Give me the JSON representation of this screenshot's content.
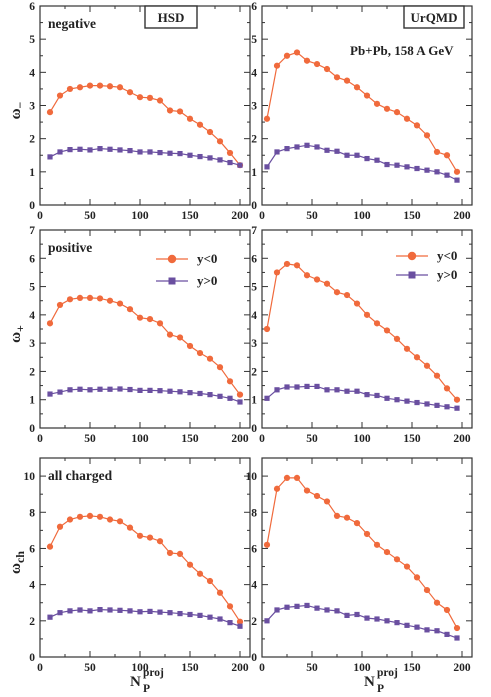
{
  "figure": {
    "xlabel": "N",
    "xlabel_sub": "P",
    "xlabel_sup": "proj",
    "models": [
      "HSD",
      "UrQMD"
    ],
    "system_label": "Pb+Pb,  158 A GeV",
    "colors": {
      "y_lt_0": "#f06a3c",
      "y_gt_0": "#6a4fa0",
      "axis": "#333333"
    }
  },
  "legend": {
    "y_lt_0": "y<0",
    "y_gt_0": "y>0"
  },
  "chart_data": [
    {
      "id": "hsd-negative",
      "type": "line",
      "model": "HSD",
      "row_label": "negative",
      "ylabel_main": "ω",
      "ylabel_sub": "−",
      "xlim": [
        0,
        210
      ],
      "ylim": [
        0,
        6
      ],
      "xticks": [
        0,
        50,
        100,
        150,
        200
      ],
      "yticks": [
        0,
        1,
        2,
        3,
        4,
        5,
        6
      ],
      "series": [
        {
          "name": "y<0",
          "marker": "circle",
          "x": [
            10,
            20,
            30,
            40,
            50,
            60,
            70,
            80,
            90,
            100,
            110,
            120,
            130,
            140,
            150,
            160,
            170,
            180,
            190,
            200
          ],
          "y": [
            2.8,
            3.3,
            3.5,
            3.55,
            3.6,
            3.6,
            3.58,
            3.55,
            3.4,
            3.25,
            3.23,
            3.15,
            2.85,
            2.82,
            2.6,
            2.42,
            2.2,
            1.92,
            1.57,
            1.2
          ]
        },
        {
          "name": "y>0",
          "marker": "square",
          "x": [
            10,
            20,
            30,
            40,
            50,
            60,
            70,
            80,
            90,
            100,
            110,
            120,
            130,
            140,
            150,
            160,
            170,
            180,
            190,
            200
          ],
          "y": [
            1.45,
            1.6,
            1.67,
            1.68,
            1.66,
            1.7,
            1.68,
            1.66,
            1.64,
            1.6,
            1.6,
            1.58,
            1.56,
            1.55,
            1.5,
            1.46,
            1.42,
            1.36,
            1.28,
            1.2
          ]
        }
      ]
    },
    {
      "id": "urqmd-negative",
      "type": "line",
      "model": "UrQMD",
      "row_label": "",
      "ylabel_main": "",
      "ylabel_sub": "",
      "xlim": [
        0,
        210
      ],
      "ylim": [
        0,
        6
      ],
      "xticks": [
        0,
        50,
        100,
        150,
        200
      ],
      "yticks": [
        0,
        1,
        2,
        3,
        4,
        5,
        6
      ],
      "series": [
        {
          "name": "y<0",
          "marker": "circle",
          "x": [
            5,
            15,
            25,
            35,
            45,
            55,
            65,
            75,
            85,
            95,
            105,
            115,
            125,
            135,
            145,
            155,
            165,
            175,
            185,
            195
          ],
          "y": [
            2.6,
            4.2,
            4.5,
            4.6,
            4.35,
            4.25,
            4.1,
            3.85,
            3.75,
            3.55,
            3.3,
            3.05,
            2.9,
            2.8,
            2.6,
            2.4,
            2.1,
            1.6,
            1.5,
            1.0
          ]
        },
        {
          "name": "y>0",
          "marker": "square",
          "x": [
            5,
            15,
            25,
            35,
            45,
            55,
            65,
            75,
            85,
            95,
            105,
            115,
            125,
            135,
            145,
            155,
            165,
            175,
            185,
            195
          ],
          "y": [
            1.15,
            1.6,
            1.7,
            1.75,
            1.8,
            1.75,
            1.65,
            1.62,
            1.5,
            1.5,
            1.4,
            1.35,
            1.22,
            1.2,
            1.15,
            1.1,
            1.05,
            1.0,
            0.9,
            0.75
          ]
        }
      ]
    },
    {
      "id": "hsd-positive",
      "type": "line",
      "model": "HSD",
      "row_label": "positive",
      "ylabel_main": "ω",
      "ylabel_sub": "+",
      "xlim": [
        0,
        210
      ],
      "ylim": [
        0,
        7
      ],
      "xticks": [
        0,
        50,
        100,
        150,
        200
      ],
      "yticks": [
        0,
        1,
        2,
        3,
        4,
        5,
        6,
        7
      ],
      "series": [
        {
          "name": "y<0",
          "marker": "circle",
          "x": [
            10,
            20,
            30,
            40,
            50,
            60,
            70,
            80,
            90,
            100,
            110,
            120,
            130,
            140,
            150,
            160,
            170,
            180,
            190,
            200
          ],
          "y": [
            3.7,
            4.35,
            4.55,
            4.6,
            4.6,
            4.58,
            4.5,
            4.4,
            4.2,
            3.9,
            3.85,
            3.7,
            3.3,
            3.2,
            2.9,
            2.65,
            2.45,
            2.15,
            1.65,
            1.18
          ]
        },
        {
          "name": "y>0",
          "marker": "square",
          "x": [
            10,
            20,
            30,
            40,
            50,
            60,
            70,
            80,
            90,
            100,
            110,
            120,
            130,
            140,
            150,
            160,
            170,
            180,
            190,
            200
          ],
          "y": [
            1.2,
            1.27,
            1.35,
            1.37,
            1.35,
            1.37,
            1.37,
            1.38,
            1.36,
            1.33,
            1.33,
            1.32,
            1.3,
            1.28,
            1.25,
            1.22,
            1.18,
            1.12,
            1.05,
            0.92
          ]
        }
      ]
    },
    {
      "id": "urqmd-positive",
      "type": "line",
      "model": "UrQMD",
      "row_label": "",
      "ylabel_main": "",
      "ylabel_sub": "",
      "xlim": [
        0,
        210
      ],
      "ylim": [
        0,
        7
      ],
      "xticks": [
        0,
        50,
        100,
        150,
        200
      ],
      "yticks": [
        0,
        1,
        2,
        3,
        4,
        5,
        6,
        7
      ],
      "series": [
        {
          "name": "y<0",
          "marker": "circle",
          "x": [
            5,
            15,
            25,
            35,
            45,
            55,
            65,
            75,
            85,
            95,
            105,
            115,
            125,
            135,
            145,
            155,
            165,
            175,
            185,
            195
          ],
          "y": [
            3.5,
            5.5,
            5.8,
            5.75,
            5.4,
            5.25,
            5.1,
            4.8,
            4.7,
            4.4,
            4.0,
            3.7,
            3.45,
            3.15,
            2.8,
            2.5,
            2.2,
            1.85,
            1.4,
            1.0
          ]
        },
        {
          "name": "y>0",
          "marker": "square",
          "x": [
            5,
            15,
            25,
            35,
            45,
            55,
            65,
            75,
            85,
            95,
            105,
            115,
            125,
            135,
            145,
            155,
            165,
            175,
            185,
            195
          ],
          "y": [
            1.05,
            1.35,
            1.45,
            1.45,
            1.47,
            1.47,
            1.35,
            1.35,
            1.3,
            1.3,
            1.18,
            1.15,
            1.05,
            1.0,
            0.95,
            0.9,
            0.85,
            0.8,
            0.75,
            0.7
          ]
        }
      ]
    },
    {
      "id": "hsd-charged",
      "type": "line",
      "model": "HSD",
      "row_label": "all charged",
      "ylabel_main": "ω",
      "ylabel_sub": "ch",
      "xlim": [
        0,
        210
      ],
      "ylim": [
        0,
        11
      ],
      "xticks": [
        0,
        50,
        100,
        150,
        200
      ],
      "yticks": [
        0,
        2,
        4,
        6,
        8,
        10
      ],
      "series": [
        {
          "name": "y<0",
          "marker": "circle",
          "x": [
            10,
            20,
            30,
            40,
            50,
            60,
            70,
            80,
            90,
            100,
            110,
            120,
            130,
            140,
            150,
            160,
            170,
            180,
            190,
            200
          ],
          "y": [
            6.1,
            7.2,
            7.6,
            7.75,
            7.8,
            7.75,
            7.6,
            7.5,
            7.15,
            6.7,
            6.6,
            6.4,
            5.75,
            5.7,
            5.1,
            4.6,
            4.2,
            3.55,
            2.8,
            1.95
          ]
        },
        {
          "name": "y>0",
          "marker": "square",
          "x": [
            10,
            20,
            30,
            40,
            50,
            60,
            70,
            80,
            90,
            100,
            110,
            120,
            130,
            140,
            150,
            160,
            170,
            180,
            190,
            200
          ],
          "y": [
            2.2,
            2.45,
            2.55,
            2.6,
            2.55,
            2.62,
            2.6,
            2.58,
            2.55,
            2.5,
            2.52,
            2.48,
            2.45,
            2.4,
            2.35,
            2.3,
            2.2,
            2.1,
            1.9,
            1.7
          ]
        }
      ]
    },
    {
      "id": "urqmd-charged",
      "type": "line",
      "model": "UrQMD",
      "row_label": "",
      "ylabel_main": "",
      "ylabel_sub": "",
      "xlim": [
        0,
        210
      ],
      "ylim": [
        0,
        11
      ],
      "xticks": [
        0,
        50,
        100,
        150,
        200
      ],
      "yticks": [
        0,
        2,
        4,
        6,
        8,
        10
      ],
      "series": [
        {
          "name": "y<0",
          "marker": "circle",
          "x": [
            5,
            15,
            25,
            35,
            45,
            55,
            65,
            75,
            85,
            95,
            105,
            115,
            125,
            135,
            145,
            155,
            165,
            175,
            185,
            195
          ],
          "y": [
            6.2,
            9.3,
            9.9,
            9.9,
            9.2,
            8.9,
            8.6,
            7.8,
            7.7,
            7.4,
            6.8,
            6.2,
            5.8,
            5.4,
            5.0,
            4.4,
            3.7,
            3.0,
            2.6,
            1.6
          ]
        },
        {
          "name": "y>0",
          "marker": "square",
          "x": [
            5,
            15,
            25,
            35,
            45,
            55,
            65,
            75,
            85,
            95,
            105,
            115,
            125,
            135,
            145,
            155,
            165,
            175,
            185,
            195
          ],
          "y": [
            2.0,
            2.6,
            2.75,
            2.8,
            2.85,
            2.7,
            2.6,
            2.55,
            2.3,
            2.35,
            2.15,
            2.1,
            2.0,
            1.9,
            1.75,
            1.65,
            1.5,
            1.45,
            1.25,
            1.05
          ]
        }
      ]
    }
  ]
}
